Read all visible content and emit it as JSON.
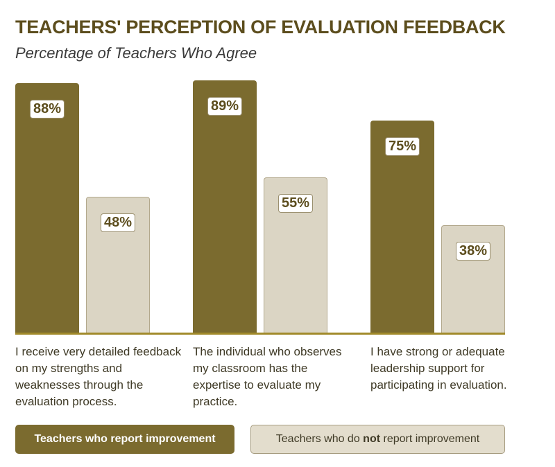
{
  "chart_data": {
    "type": "bar",
    "title": "TEACHERS' PERCEPTION OF EVALUATION FEEDBACK",
    "subtitle": "Percentage of Teachers Who Agree",
    "xlabel": "",
    "ylabel": "",
    "ylim": [
      0,
      100
    ],
    "grid": false,
    "categories": [
      "I receive very detailed feedback on my strengths and weaknesses through the evaluation process.",
      "The individual who observes my classroom has the expertise to evaluate my practice.",
      "I have strong or adequate leadership support for participating in evaluation."
    ],
    "series": [
      {
        "name": "Teachers who report improvement",
        "values": [
          88,
          89,
          75
        ],
        "labels": [
          "88%",
          "89%",
          "75%"
        ],
        "color": "#7b6b2f"
      },
      {
        "name": "Teachers who do not report improvement",
        "values": [
          48,
          55,
          38
        ],
        "labels": [
          "48%",
          "55%",
          "38%"
        ],
        "color": "#dbd5c4"
      }
    ],
    "legend": {
      "placement": "bottom",
      "items": [
        {
          "pre": "Teachers who report improvement",
          "bold": "",
          "post": ""
        },
        {
          "pre": "Teachers who do ",
          "bold": "not",
          "post": " report improvement"
        }
      ]
    }
  }
}
